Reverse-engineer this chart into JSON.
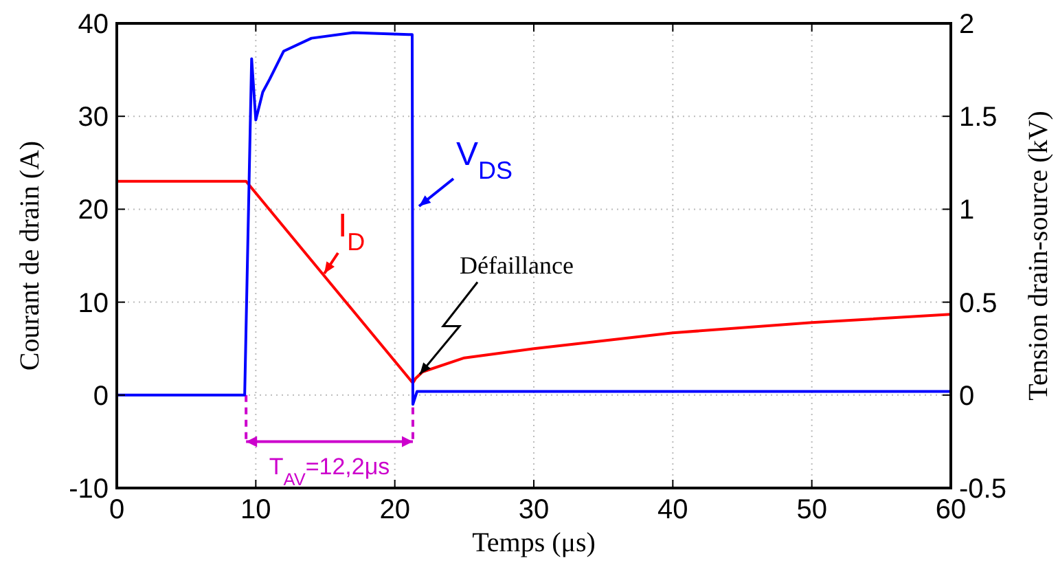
{
  "chart_data": {
    "type": "line",
    "xlabel": "Temps (μs)",
    "ylabel": "Courant de drain (A)",
    "y2label": "Tension drain-source (kV)",
    "xlim": [
      0,
      60
    ],
    "xticks": [
      0,
      10,
      20,
      30,
      40,
      50,
      60
    ],
    "ylim": [
      -10,
      40
    ],
    "yticks": [
      -10,
      0,
      10,
      20,
      30,
      40
    ],
    "y2lim": [
      -0.5,
      2
    ],
    "y2ticks": [
      -0.5,
      0,
      0.5,
      1,
      1.5,
      2
    ],
    "grid": true,
    "marker": "none",
    "line_style": "solid",
    "series": [
      {
        "name": "I$_{D}$",
        "color": "#ff0000",
        "x": [
          0,
          9,
          9.3,
          21.3,
          21.5,
          22,
          25,
          30,
          40,
          50,
          60
        ],
        "values": [
          23,
          23,
          23,
          1.3,
          1.8,
          2.5,
          4,
          5,
          6.7,
          7.8,
          8.7
        ]
      },
      {
        "name": "V$_{DS}$",
        "color": "#0000ff",
        "axis": "y2",
        "x": [
          0,
          9.2,
          9.7,
          10,
          10.5,
          11,
          12,
          14,
          17,
          21,
          21.25,
          21.3,
          21.6,
          60
        ],
        "values": [
          0,
          0,
          1.81,
          1.48,
          1.63,
          1.7,
          1.85,
          1.92,
          1.95,
          1.94,
          1.94,
          -0.05,
          0.02,
          0.02
        ]
      }
    ],
    "ref_lines": [
      {
        "axis": "x",
        "value": 9.3,
        "color": "#cc00cc",
        "line_style": "dashed"
      },
      {
        "axis": "x",
        "value": 21.3,
        "color": "#cc00cc",
        "line_style": "dashed"
      }
    ],
    "annotations": [
      {
        "text": "Défaillance",
        "x": 21.5,
        "y": 1.8
      },
      {
        "text": "T$_{AV}$=12,2μs",
        "x": 21.3,
        "y": -5
      }
    ]
  }
}
